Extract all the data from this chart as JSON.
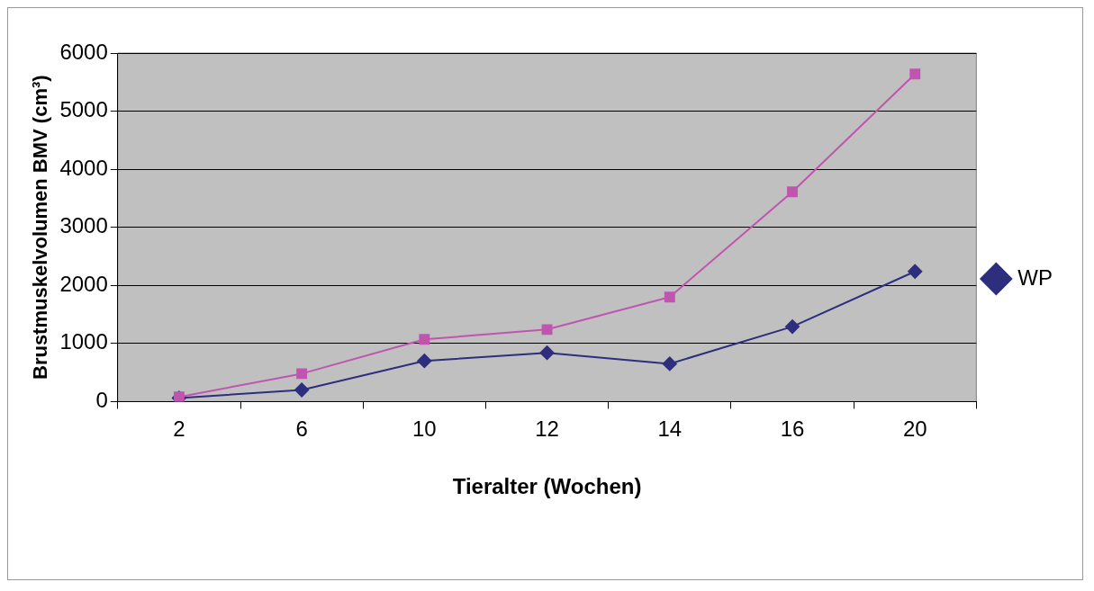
{
  "chart_data": {
    "type": "line",
    "xlabel": "Tieralter (Wochen)",
    "ylabel": "Brustmuskelvolumen BMV (cm³)",
    "categories": [
      "2",
      "6",
      "10",
      "12",
      "14",
      "16",
      "20"
    ],
    "ylim": [
      0,
      6000
    ],
    "yticks": [
      0,
      1000,
      2000,
      3000,
      4000,
      5000,
      6000
    ],
    "grid": "y",
    "legend": "right",
    "series": [
      {
        "name": "WP",
        "color": "#2e2e7e",
        "marker": "diamond",
        "values": [
          60,
          200,
          700,
          840,
          650,
          1290,
          2240
        ]
      },
      {
        "color": "#c055b0",
        "marker": "square",
        "values": [
          80,
          480,
          1070,
          1240,
          1800,
          3610,
          5640
        ]
      }
    ]
  }
}
